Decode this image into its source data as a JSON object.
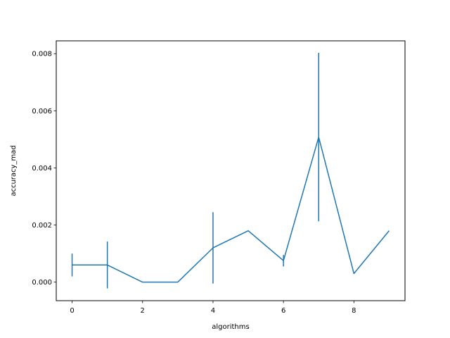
{
  "chart_data": {
    "type": "line",
    "title": "",
    "xlabel": "algorithms",
    "ylabel": "accuracy_mad",
    "xlim": [
      -0.45,
      9.45
    ],
    "ylim": [
      -0.00065,
      0.00845
    ],
    "xticks": [
      0,
      2,
      4,
      6,
      8
    ],
    "xtick_labels": [
      "0",
      "2",
      "4",
      "6",
      "8"
    ],
    "yticks": [
      0.0,
      0.002,
      0.004,
      0.006,
      0.008
    ],
    "ytick_labels": [
      "0.000",
      "0.002",
      "0.004",
      "0.006",
      "0.008"
    ],
    "grid": false,
    "color": "#1f77b4",
    "series": [
      {
        "x": [
          0,
          1,
          2,
          3,
          4,
          5,
          6,
          7,
          8,
          9
        ],
        "values": [
          0.0006,
          0.0006,
          0.0,
          0.0,
          0.0012,
          0.0018,
          0.00075,
          0.00508,
          0.0003,
          0.0018
        ],
        "error": [
          0.0004,
          0.00082,
          0,
          0,
          0.00125,
          0,
          0.0002,
          0.00295,
          0,
          0
        ]
      }
    ]
  }
}
